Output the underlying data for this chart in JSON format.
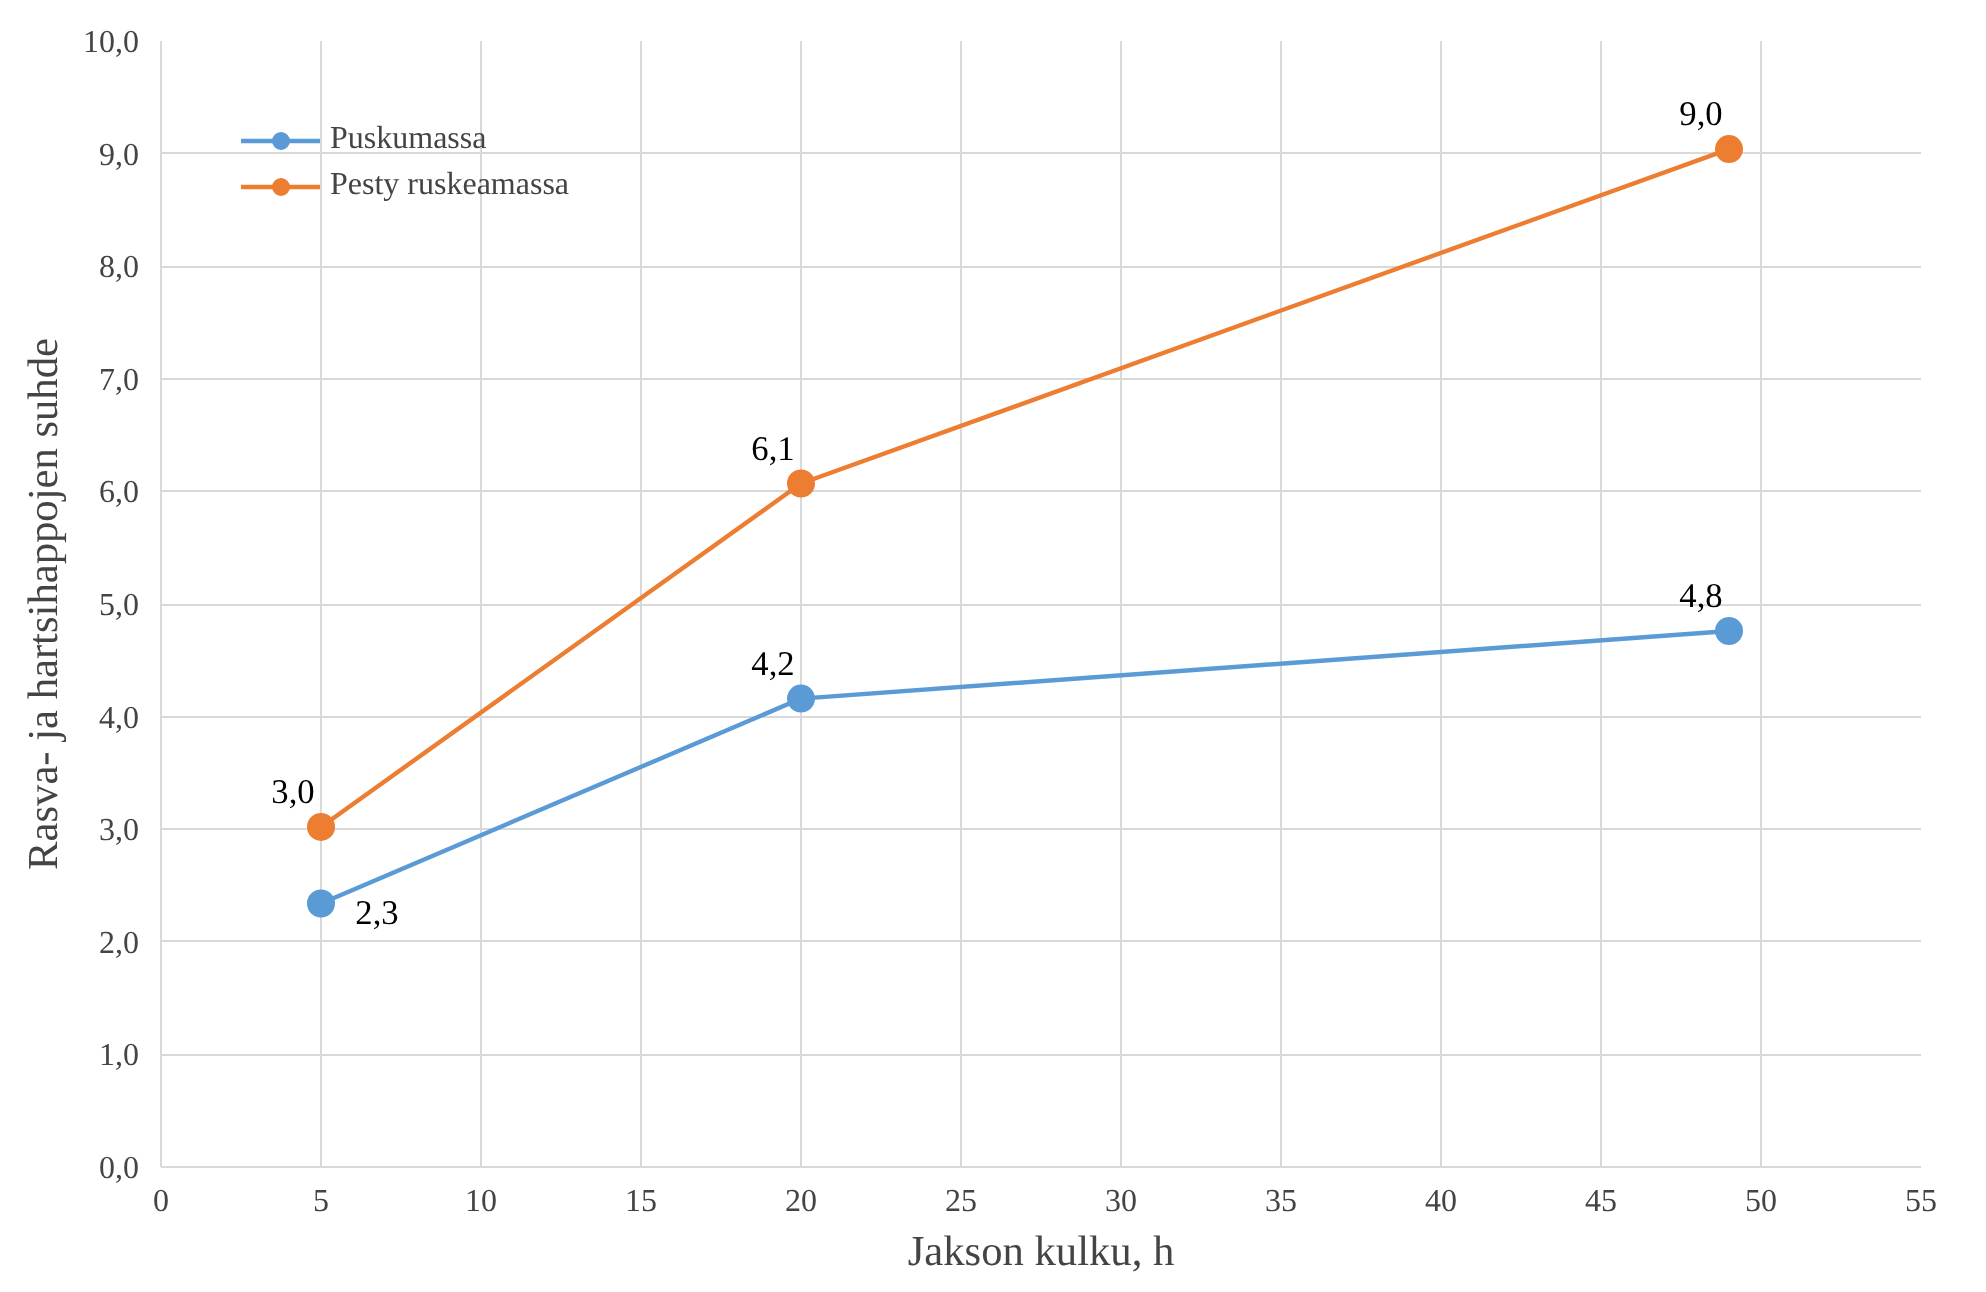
{
  "chart_data": {
    "type": "line",
    "xlabel": "Jakson kulku, h",
    "ylabel": "Rasva- ja hartsihappojen suhde",
    "x": [
      5,
      20,
      49
    ],
    "series": [
      {
        "name": "Puskumassa",
        "color": "#5b9bd5",
        "values": [
          2.34,
          4.16,
          4.76
        ],
        "value_labels": [
          "2,3",
          "4,2",
          "4,8"
        ]
      },
      {
        "name": "Pesty ruskeamassa",
        "color": "#ed7d31",
        "values": [
          3.02,
          6.07,
          9.04
        ],
        "value_labels": [
          "3,0",
          "6,1",
          "9,0"
        ]
      }
    ],
    "xlim": [
      0,
      55
    ],
    "xticks": [
      0,
      5,
      10,
      15,
      20,
      25,
      30,
      35,
      40,
      45,
      50,
      55
    ],
    "ylim": [
      0,
      10
    ],
    "yticks": [
      {
        "value": 0,
        "label": "0,0"
      },
      {
        "value": 1,
        "label": "1,0"
      },
      {
        "value": 2,
        "label": "2,0"
      },
      {
        "value": 3,
        "label": "3,0"
      },
      {
        "value": 4,
        "label": "4,0"
      },
      {
        "value": 5,
        "label": "5,0"
      },
      {
        "value": 6,
        "label": "6,0"
      },
      {
        "value": 7,
        "label": "7,0"
      },
      {
        "value": 8,
        "label": "8,0"
      },
      {
        "value": 9,
        "label": "9,0"
      },
      {
        "value": 10,
        "label": "10,0"
      }
    ],
    "grid": true,
    "legend": "top left",
    "marker": "circle",
    "line_style": "solid"
  }
}
